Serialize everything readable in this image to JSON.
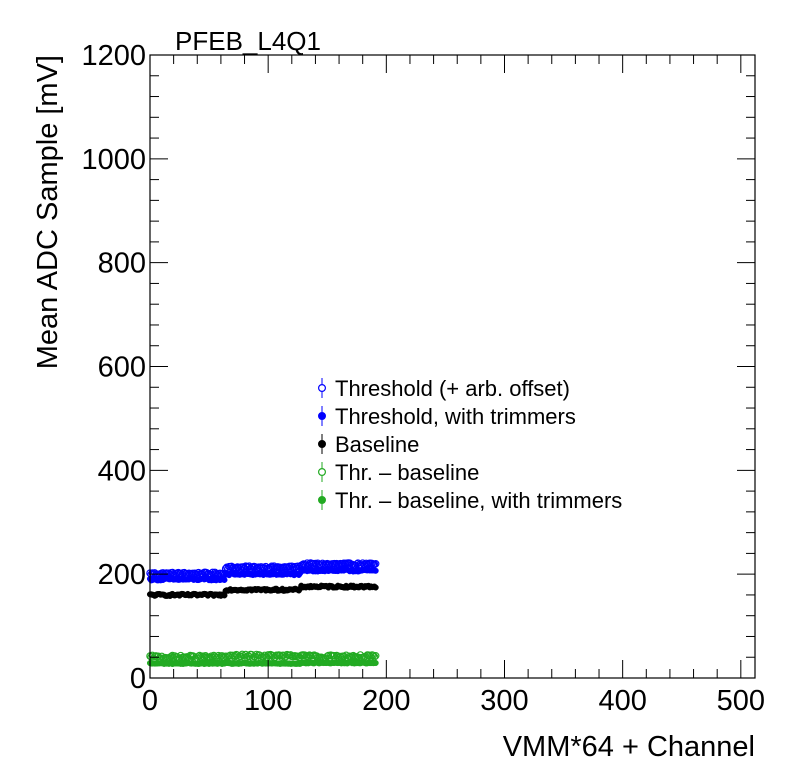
{
  "chart_data": {
    "type": "scatter",
    "title": "PFEB_L4Q1",
    "xlabel": "VMM*64 + Channel",
    "ylabel": "Mean ADC Sample [mV]",
    "xlim": [
      0,
      512
    ],
    "ylim": [
      0,
      1200
    ],
    "x_ticks": [
      0,
      100,
      200,
      300,
      400,
      500
    ],
    "x_tick_labels": [
      "0",
      "100",
      "200",
      "300",
      "400",
      "500"
    ],
    "y_ticks": [
      0,
      200,
      400,
      600,
      800,
      1000,
      1200
    ],
    "y_tick_labels": [
      "0",
      "200",
      "400",
      "600",
      "800",
      "1000",
      "1200"
    ],
    "grid": false,
    "legend_position": "center",
    "x": {
      "start": 0,
      "end": 191,
      "step": 1
    },
    "series": [
      {
        "name": "Threshold (+ arb. offset)",
        "color": "#0000ff",
        "marker": "open-circle",
        "levels": [
          201,
          213,
          219
        ],
        "noise": 2.5
      },
      {
        "name": "Threshold, with trimmers",
        "color": "#0000ff",
        "marker": "filled-circle",
        "levels": [
          190,
          200,
          207
        ],
        "noise": 2.0
      },
      {
        "name": "Baseline",
        "color": "#000000",
        "marker": "filled-circle",
        "levels": [
          160,
          170,
          176
        ],
        "noise": 2.0
      },
      {
        "name": "Thr. – baseline",
        "color": "#22aa22",
        "marker": "open-circle",
        "levels": [
          40,
          42,
          41
        ],
        "noise": 3.5
      },
      {
        "name": "Thr. – baseline, with trimmers",
        "color": "#22aa22",
        "marker": "filled-circle",
        "levels": [
          28,
          28,
          29
        ],
        "noise": 1.0
      }
    ]
  }
}
